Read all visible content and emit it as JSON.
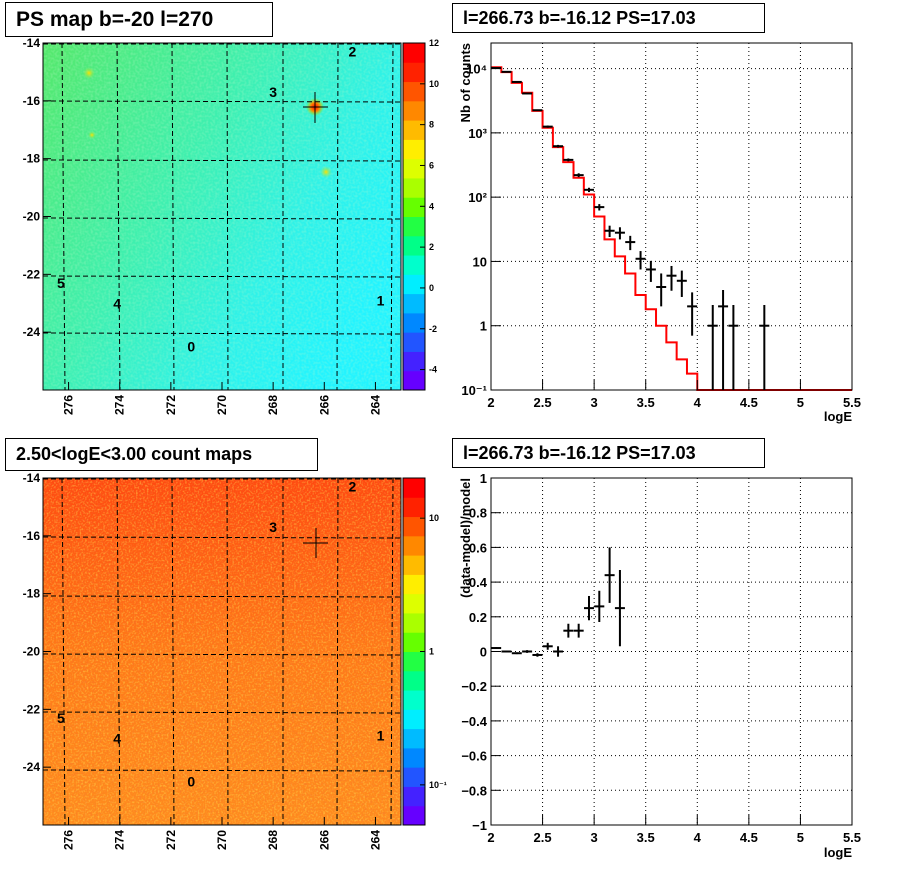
{
  "panels": {
    "ps_map": {
      "title": "PS map b=-20 l=270",
      "y_ticks": [
        "-14",
        "-16",
        "-18",
        "-20",
        "-22",
        "-24"
      ],
      "x_ticks": [
        "276",
        "274",
        "272",
        "270",
        "268",
        "266",
        "264"
      ],
      "colorbar_ticks": [
        "12",
        "10",
        "8",
        "6",
        "4",
        "2",
        "0",
        "-2",
        "-4"
      ],
      "markers": [
        "2",
        "3",
        "5",
        "4",
        "0",
        "1"
      ]
    },
    "count_map": {
      "title": "2.50<logE<3.00 count maps",
      "y_ticks": [
        "-14",
        "-16",
        "-18",
        "-20",
        "-22",
        "-24"
      ],
      "x_ticks": [
        "276",
        "274",
        "272",
        "270",
        "268",
        "266",
        "264"
      ],
      "colorbar_ticks": [
        "10",
        "1",
        "10⁻¹"
      ],
      "markers": [
        "2",
        "3",
        "5",
        "4",
        "0",
        "1"
      ]
    }
  },
  "chart_data": [
    {
      "type": "heatmap",
      "title": "PS map b=-20 l=270",
      "xlim": [
        277,
        263
      ],
      "ylim": [
        -26,
        -14
      ],
      "zlim": [
        -5,
        12
      ],
      "colorbar_ticks": [
        12,
        10,
        8,
        6,
        4,
        2,
        0,
        -2,
        -4
      ],
      "hotspots": [
        {
          "l": 266.73,
          "b": -16.12,
          "value": 12
        },
        {
          "l": 276.1,
          "b": -15.2,
          "value": 6
        },
        {
          "l": 266.5,
          "b": -18.4,
          "value": 7
        }
      ],
      "markers": [
        {
          "label": "2",
          "l": 264.9,
          "b": -14.3
        },
        {
          "label": "3",
          "l": 268.0,
          "b": -15.7
        },
        {
          "label": "5",
          "l": 276.3,
          "b": -22.3
        },
        {
          "label": "4",
          "l": 274.1,
          "b": -23.0
        },
        {
          "label": "0",
          "l": 271.2,
          "b": -24.5
        },
        {
          "label": "1",
          "l": 263.8,
          "b": -22.9
        }
      ]
    },
    {
      "type": "line",
      "title": "l=266.73 b=-16.12 PS=17.03",
      "xlabel": "logE",
      "ylabel": "Nb of counts",
      "xlim": [
        2,
        5.5
      ],
      "ylim": [
        0.1,
        25000
      ],
      "yscale": "log",
      "grid": true,
      "x_ticks": [
        "2",
        "2.5",
        "3",
        "3.5",
        "4",
        "4.5",
        "5",
        "5.5"
      ],
      "y_ticks": [
        {
          "v": 10000,
          "l": "10⁴"
        },
        {
          "v": 1000,
          "l": "10³"
        },
        {
          "v": 100,
          "l": "10²"
        },
        {
          "v": 10,
          "l": "10"
        },
        {
          "v": 1,
          "l": "1"
        },
        {
          "v": 0.1,
          "l": "10⁻¹"
        }
      ],
      "series": [
        {
          "kind": "step",
          "color": "#ff0000",
          "x_edges": [
            2.0,
            2.1,
            2.2,
            2.3,
            2.4,
            2.5,
            2.6,
            2.7,
            2.8,
            2.9,
            3.0,
            3.1,
            3.2,
            3.3,
            3.4,
            3.5,
            3.6,
            3.7,
            3.8,
            3.9,
            4.0,
            4.1,
            4.2,
            4.3,
            4.4,
            4.5,
            4.6,
            4.7,
            4.8,
            4.9,
            5.0,
            5.1,
            5.2,
            5.3,
            5.4,
            5.5
          ],
          "values": [
            10500,
            8800,
            6000,
            4200,
            2200,
            1200,
            600,
            350,
            200,
            110,
            50,
            22,
            12,
            6.5,
            3,
            1.8,
            1.0,
            0.55,
            0.3,
            0.18,
            0.1,
            0.1,
            0.1,
            0.1,
            0.1,
            0.1,
            0.1,
            0.1,
            0.1,
            0.1,
            0.1,
            0.1,
            0.1,
            0.1,
            0.1
          ]
        },
        {
          "kind": "points",
          "color": "#000000",
          "x": [
            2.05,
            2.15,
            2.25,
            2.35,
            2.45,
            2.55,
            2.65,
            2.75,
            2.85,
            2.95,
            3.05,
            3.15,
            3.25,
            3.35,
            3.45,
            3.55,
            3.65,
            3.75,
            3.85,
            3.95,
            4.15,
            4.25,
            4.35,
            4.65
          ],
          "y": [
            10200,
            8900,
            6200,
            4100,
            2250,
            1250,
            620,
            380,
            220,
            130,
            70,
            30,
            28,
            20,
            11,
            7.5,
            4,
            6,
            5,
            2,
            1,
            2,
            1,
            1
          ],
          "ylow": [
            10000,
            8700,
            6050,
            4000,
            2200,
            1200,
            590,
            360,
            205,
            120,
            62,
            24,
            22,
            15,
            7.5,
            4.8,
            2,
            3.5,
            2.8,
            0.7,
            0.1,
            0.1,
            0.1,
            0.1
          ],
          "yhigh": [
            10400,
            9100,
            6350,
            4200,
            2300,
            1300,
            650,
            400,
            235,
            140,
            78,
            36,
            34,
            25,
            14.5,
            10.2,
            6.5,
            8.5,
            7.2,
            3.3,
            2.1,
            3.6,
            2.1,
            2.1
          ]
        }
      ]
    },
    {
      "type": "heatmap",
      "title": "2.50<logE<3.00 count maps",
      "xlim": [
        277,
        263
      ],
      "ylim": [
        -26,
        -14
      ],
      "zscale": "log",
      "zlim": [
        0.05,
        20
      ],
      "colorbar_ticks": [
        "10",
        "1",
        "10⁻¹"
      ],
      "markers": [
        {
          "label": "2",
          "l": 264.9,
          "b": -14.3
        },
        {
          "label": "3",
          "l": 268.0,
          "b": -15.7
        },
        {
          "label": "5",
          "l": 276.3,
          "b": -22.3
        },
        {
          "label": "4",
          "l": 274.1,
          "b": -23.0
        },
        {
          "label": "0",
          "l": 271.2,
          "b": -24.5
        },
        {
          "label": "1",
          "l": 263.8,
          "b": -22.9
        }
      ]
    },
    {
      "type": "scatter",
      "title": "l=266.73 b=-16.12 PS=17.03",
      "xlabel": "logE",
      "ylabel": "(data-model)/model",
      "xlim": [
        2,
        5.5
      ],
      "ylim": [
        -1,
        1
      ],
      "grid": true,
      "x_ticks": [
        "2",
        "2.5",
        "3",
        "3.5",
        "4",
        "4.5",
        "5",
        "5.5"
      ],
      "y_ticks": [
        "1",
        "0.8",
        "0.6",
        "0.4",
        "0.2",
        "0",
        "−0.2",
        "−0.4",
        "−0.6",
        "−0.8",
        "−1"
      ],
      "series": [
        {
          "color": "#000000",
          "x": [
            2.05,
            2.15,
            2.25,
            2.35,
            2.45,
            2.55,
            2.65,
            2.75,
            2.85,
            2.95,
            3.05,
            3.15,
            3.25
          ],
          "y": [
            0.02,
            0.0,
            -0.01,
            0.0,
            -0.02,
            0.03,
            0.0,
            0.12,
            0.12,
            0.25,
            0.26,
            0.44,
            0.25
          ],
          "yerr": [
            0.005,
            0.005,
            0.005,
            0.008,
            0.01,
            0.02,
            0.03,
            0.04,
            0.04,
            0.07,
            0.09,
            0.16,
            0.22
          ]
        }
      ]
    }
  ]
}
